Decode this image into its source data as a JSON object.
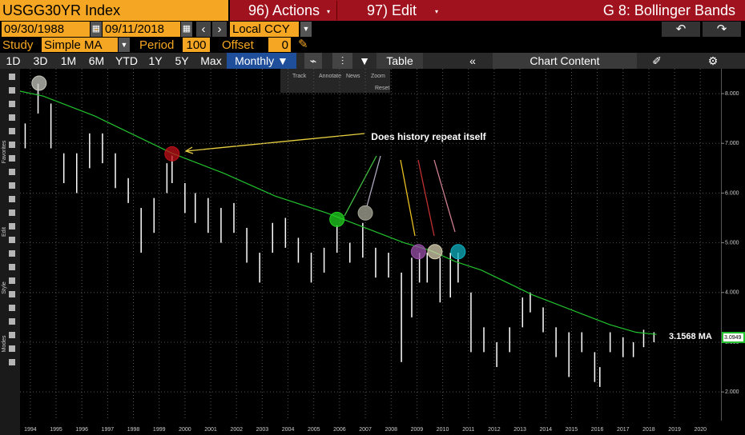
{
  "header": {
    "ticker": "USGG30YR Index",
    "actions": "96) Actions",
    "edit": "97) Edit",
    "view": "G 8: Bollinger Bands"
  },
  "controls": {
    "start_date": "09/30/1988",
    "date_sep": "-",
    "end_date": "09/11/2018",
    "currency": "Local CCY",
    "study_label": "Study",
    "study": "Simple MA",
    "period_label": "Period",
    "period": "100",
    "offset_label": "Offset",
    "offset": "0"
  },
  "tabs": [
    "1D",
    "3D",
    "1M",
    "6M",
    "YTD",
    "1Y",
    "5Y",
    "Max",
    "Monthly ▼"
  ],
  "toolbar": {
    "table": "Table",
    "collapse": "«",
    "chart_content": "Chart Content"
  },
  "mini_toolbar": [
    "Track",
    "Annotate",
    "News",
    "Zoom",
    "Reset"
  ],
  "sidebar": [
    "Favorites",
    "Edit",
    "Style",
    "Modes"
  ],
  "chart_data": {
    "type": "hilo",
    "annotation": "Does history repeat itself",
    "xlim": [
      1994.1,
      2021.3
    ],
    "ylim": [
      1.6,
      8.5
    ],
    "grid": true,
    "xticks": [
      {
        "value": 1994.5,
        "label": "1994"
      },
      {
        "value": 1995.5,
        "label": "1995"
      },
      {
        "value": 1996.5,
        "label": "1996"
      },
      {
        "value": 1997.5,
        "label": "1997"
      },
      {
        "value": 1998.5,
        "label": "1998"
      },
      {
        "value": 1999.5,
        "label": "1999"
      },
      {
        "value": 2000.5,
        "label": "2000"
      },
      {
        "value": 2001.5,
        "label": "2001"
      },
      {
        "value": 2002.5,
        "label": "2002"
      },
      {
        "value": 2003.5,
        "label": "2003"
      },
      {
        "value": 2004.5,
        "label": "2004"
      },
      {
        "value": 2005.5,
        "label": "2005"
      },
      {
        "value": 2006.5,
        "label": "2006"
      },
      {
        "value": 2007.5,
        "label": "2007"
      },
      {
        "value": 2008.5,
        "label": "2008"
      },
      {
        "value": 2009.5,
        "label": "2009"
      },
      {
        "value": 2010.5,
        "label": "2010"
      },
      {
        "value": 2011.5,
        "label": "2011"
      },
      {
        "value": 2012.5,
        "label": "2012"
      },
      {
        "value": 2013.5,
        "label": "2013"
      },
      {
        "value": 2014.5,
        "label": "2014"
      },
      {
        "value": 2015.5,
        "label": "2015"
      },
      {
        "value": 2016.5,
        "label": "2016"
      },
      {
        "value": 2017.5,
        "label": "2017"
      },
      {
        "value": 2018.5,
        "label": "2018"
      },
      {
        "value": 2019.5,
        "label": "2019"
      },
      {
        "value": 2020.5,
        "label": "2020"
      }
    ],
    "yticks": [
      {
        "value": 2,
        "label": "2.000"
      },
      {
        "value": 3,
        "label": "3.000"
      },
      {
        "value": 4,
        "label": "4.000"
      },
      {
        "value": 5,
        "label": "5.000"
      },
      {
        "value": 6,
        "label": "6.000"
      },
      {
        "value": 7,
        "label": "7.000"
      },
      {
        "value": 8,
        "label": "8.000"
      }
    ],
    "series": [
      {
        "type": "range",
        "color": "#ffffff",
        "x": [
          1994.3,
          1994.8,
          1995.3,
          1995.8,
          1996.3,
          1996.8,
          1997.3,
          1997.8,
          1998.3,
          1998.8,
          1999.3,
          1999.8,
          2000.0,
          2000.5,
          2000.9,
          2001.4,
          2001.9,
          2002.4,
          2002.9,
          2003.4,
          2003.9,
          2004.4,
          2004.9,
          2005.4,
          2005.9,
          2006.4,
          2006.9,
          2007.4,
          2007.9,
          2008.4,
          2008.9,
          2009.3,
          2009.6,
          2009.9,
          2010.4,
          2010.8,
          2011.1,
          2011.6,
          2012.1,
          2012.6,
          2013.1,
          2013.6,
          2013.9,
          2014.4,
          2014.9,
          2015.4,
          2015.9,
          2016.4,
          2016.6,
          2017.0,
          2017.5,
          2017.9,
          2018.3,
          2018.7
        ],
        "high": [
          7.4,
          8.2,
          7.8,
          6.8,
          6.8,
          7.2,
          7.2,
          6.8,
          6.3,
          5.7,
          5.9,
          6.6,
          6.75,
          6.2,
          6.0,
          5.9,
          5.7,
          5.8,
          5.3,
          4.8,
          5.4,
          5.5,
          5.1,
          4.8,
          4.9,
          5.35,
          5.0,
          5.4,
          4.9,
          4.8,
          4.4,
          4.7,
          4.8,
          4.8,
          4.7,
          4.8,
          4.8,
          4.0,
          3.3,
          3.0,
          3.3,
          3.9,
          4.0,
          3.7,
          3.3,
          3.2,
          3.2,
          2.8,
          2.5,
          3.2,
          3.1,
          3.0,
          3.25,
          3.2
        ],
        "low": [
          6.9,
          7.6,
          6.9,
          6.2,
          6.0,
          6.5,
          6.6,
          6.1,
          5.8,
          4.8,
          5.2,
          6.0,
          6.2,
          5.6,
          5.4,
          5.2,
          5.0,
          5.2,
          4.6,
          4.2,
          4.8,
          4.9,
          4.6,
          4.2,
          4.4,
          4.8,
          4.6,
          4.7,
          4.3,
          4.3,
          2.6,
          3.5,
          4.2,
          4.2,
          3.8,
          3.9,
          4.2,
          2.8,
          2.8,
          2.5,
          2.8,
          3.3,
          3.6,
          3.2,
          2.7,
          2.3,
          2.8,
          2.2,
          2.1,
          2.8,
          2.7,
          2.7,
          2.9,
          3.0
        ]
      },
      {
        "type": "line",
        "color": "#22c32e",
        "x": [
          1994.1,
          1995,
          1997,
          2000,
          2002,
          2004,
          2006,
          2007.5,
          2009,
          2010,
          2011,
          2012,
          2013,
          2014,
          2015,
          2016,
          2017,
          2018,
          2018.8
        ],
        "values": [
          8.05,
          7.95,
          7.55,
          6.8,
          6.4,
          5.94,
          5.6,
          5.3,
          5.0,
          4.85,
          4.62,
          4.45,
          4.2,
          3.95,
          3.75,
          3.55,
          3.35,
          3.2,
          3.157
        ]
      }
    ],
    "ma_label": {
      "value": 3.1568,
      "label": "3.1568 MA"
    },
    "last_price": {
      "value": 3.0949,
      "label": "3.0949"
    },
    "highlights": [
      {
        "x": 1994.84,
        "y": 8.21,
        "color": "#c8c8c0"
      },
      {
        "x": 2000.0,
        "y": 6.79,
        "color": "#c0101a"
      },
      {
        "x": 2006.4,
        "y": 5.47,
        "color": "#22d020"
      },
      {
        "x": 2007.5,
        "y": 5.6,
        "color": "#a8a898"
      },
      {
        "x": 2009.56,
        "y": 4.82,
        "color": "#9a50a8"
      },
      {
        "x": 2010.2,
        "y": 4.82,
        "color": "#d8d0b0"
      },
      {
        "x": 2011.1,
        "y": 4.82,
        "color": "#10b0c0"
      }
    ]
  }
}
